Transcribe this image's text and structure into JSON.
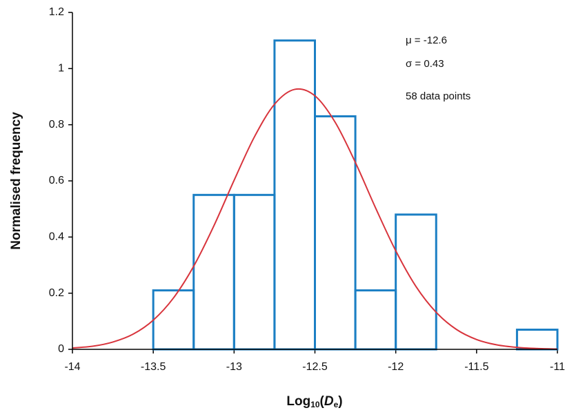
{
  "chart_data": {
    "type": "histogram",
    "x_label_parts": [
      "Log",
      "10",
      "(",
      "D",
      "e",
      ")"
    ],
    "y_label": "Normalised frequency",
    "annotations": [
      "μ = -12.6",
      "σ = 0.43",
      "58 data points"
    ],
    "bins": [
      -13.5,
      -13.25,
      -13,
      -12.75,
      -12.5,
      -12.25,
      -12,
      -11.75,
      -11.5,
      -11.25,
      -11
    ],
    "values": [
      0.21,
      0.55,
      0.55,
      1.1,
      0.83,
      0.21,
      0.48,
      0,
      0,
      0.07
    ],
    "color": "#1b7fc4",
    "curve": {
      "type": "line",
      "color": "#d8343c",
      "x": [
        -14,
        -13.875,
        -13.75,
        -13.625,
        -13.5,
        -13.375,
        -13.25,
        -13.125,
        -13,
        -12.875,
        -12.75,
        -12.625,
        -12.5,
        -12.375,
        -12.25,
        -12.125,
        -12,
        -11.875,
        -11.75,
        -11.625,
        -11.5,
        -11.375,
        -11.25,
        -11.125,
        -11
      ],
      "values": [
        0.005,
        0.011,
        0.026,
        0.054,
        0.104,
        0.183,
        0.296,
        0.44,
        0.602,
        0.756,
        0.873,
        0.926,
        0.903,
        0.809,
        0.666,
        0.504,
        0.351,
        0.224,
        0.132,
        0.071,
        0.035,
        0.016,
        0.007,
        0.003,
        0.001
      ]
    },
    "xlim": [
      -14,
      -11
    ],
    "xticks": [
      -14,
      -13.5,
      -13,
      -12.5,
      -12,
      -11.5,
      -11
    ],
    "ylim": [
      0,
      1.2
    ],
    "yticks": [
      0,
      0.2,
      0.4,
      0.6,
      0.8,
      1,
      1.2
    ],
    "grid": false
  }
}
